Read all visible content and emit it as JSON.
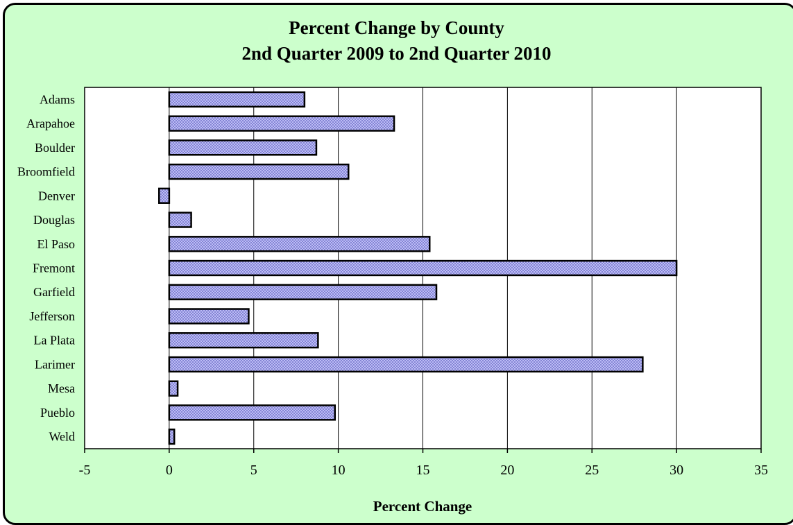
{
  "chart_data": {
    "type": "bar",
    "orientation": "horizontal",
    "title": "Percent Change by County",
    "subtitle": "2nd Quarter 2009 to 2nd Quarter 2010",
    "xlabel": "Percent Change",
    "ylabel": "",
    "categories": [
      "Adams",
      "Arapahoe",
      "Boulder",
      "Broomfield",
      "Denver",
      "Douglas",
      "El Paso",
      "Fremont",
      "Garfield",
      "Jefferson",
      "La Plata",
      "Larimer",
      "Mesa",
      "Pueblo",
      "Weld"
    ],
    "values": [
      8.0,
      13.3,
      8.7,
      10.6,
      -0.6,
      1.3,
      15.4,
      30.0,
      15.8,
      4.7,
      8.8,
      28.0,
      0.5,
      9.8,
      0.3
    ],
    "xlim": [
      -5,
      35
    ],
    "xticks": [
      -5,
      0,
      5,
      10,
      15,
      20,
      25,
      30,
      35
    ],
    "grid": true,
    "legend": "none",
    "colors": {
      "frame_background": "#ccffcc",
      "plot_background": "#ffffff",
      "bar_fill": "#ccccff",
      "bar_pattern": "#7777cc",
      "bar_outline": "#000000"
    }
  }
}
